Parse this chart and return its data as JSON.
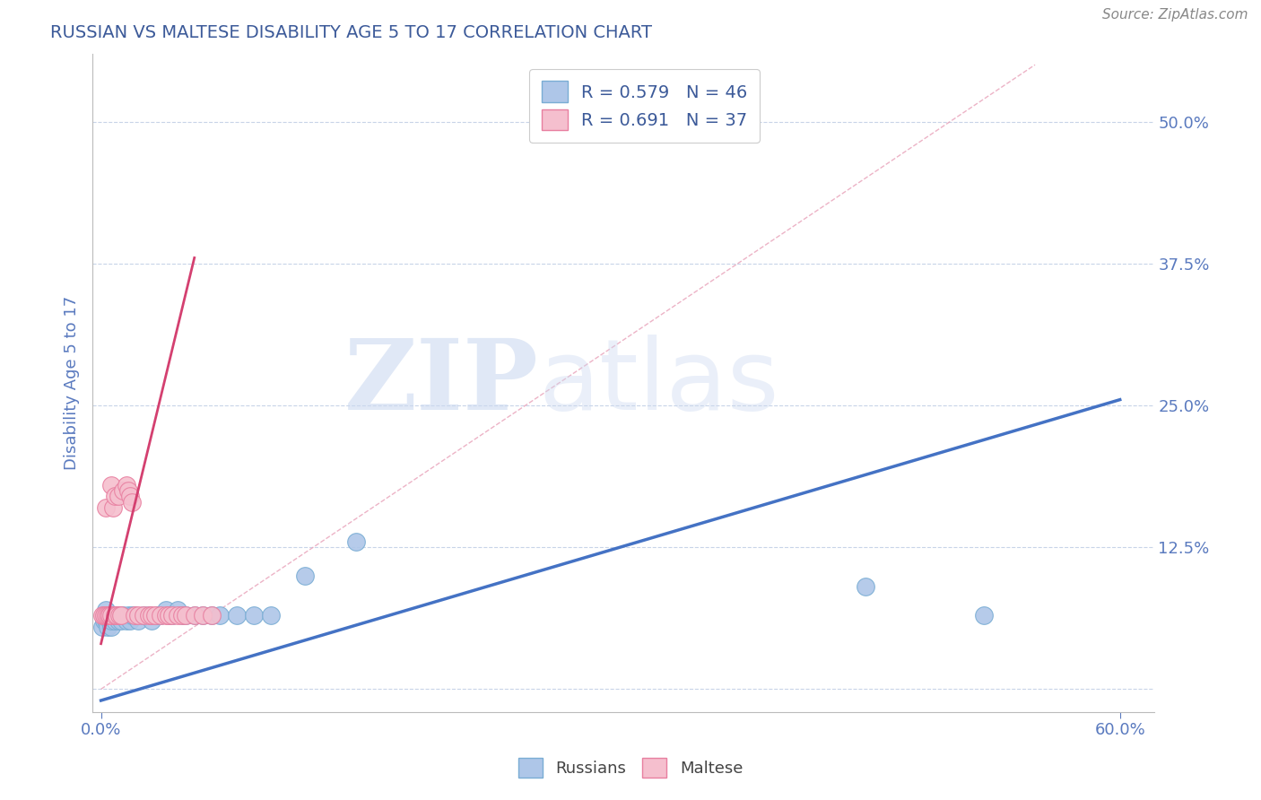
{
  "title": "RUSSIAN VS MALTESE DISABILITY AGE 5 TO 17 CORRELATION CHART",
  "source": "Source: ZipAtlas.com",
  "ylabel": "Disability Age 5 to 17",
  "xlim": [
    -0.005,
    0.62
  ],
  "ylim": [
    -0.02,
    0.56
  ],
  "xticks": [
    0.0,
    0.6
  ],
  "xtick_labels": [
    "0.0%",
    "60.0%"
  ],
  "yticks": [
    0.0,
    0.125,
    0.25,
    0.375,
    0.5
  ],
  "ytick_labels": [
    "",
    "12.5%",
    "25.0%",
    "37.5%",
    "50.0%"
  ],
  "title_color": "#3c5a99",
  "watermark_color": "#ccd9f0",
  "russian_color": "#aec6e8",
  "maltese_color": "#f5bfce",
  "russian_edge": "#7aadd4",
  "maltese_edge": "#e87fa0",
  "russian_R": 0.579,
  "russian_N": 46,
  "maltese_R": 0.691,
  "maltese_N": 37,
  "russian_points_x": [
    0.001,
    0.002,
    0.002,
    0.003,
    0.003,
    0.004,
    0.004,
    0.005,
    0.005,
    0.006,
    0.006,
    0.007,
    0.008,
    0.009,
    0.01,
    0.01,
    0.012,
    0.013,
    0.015,
    0.016,
    0.017,
    0.018,
    0.02,
    0.022,
    0.025,
    0.028,
    0.03,
    0.033,
    0.035,
    0.038,
    0.04,
    0.042,
    0.045,
    0.048,
    0.05,
    0.055,
    0.06,
    0.065,
    0.07,
    0.08,
    0.09,
    0.1,
    0.12,
    0.15,
    0.45,
    0.52
  ],
  "russian_points_y": [
    0.055,
    0.06,
    0.065,
    0.06,
    0.07,
    0.065,
    0.055,
    0.06,
    0.065,
    0.055,
    0.06,
    0.065,
    0.06,
    0.065,
    0.06,
    0.065,
    0.06,
    0.065,
    0.06,
    0.065,
    0.06,
    0.065,
    0.065,
    0.06,
    0.065,
    0.065,
    0.06,
    0.065,
    0.065,
    0.07,
    0.065,
    0.065,
    0.07,
    0.065,
    0.065,
    0.065,
    0.065,
    0.065,
    0.065,
    0.065,
    0.065,
    0.065,
    0.1,
    0.13,
    0.09,
    0.065
  ],
  "maltese_points_x": [
    0.001,
    0.002,
    0.003,
    0.003,
    0.004,
    0.005,
    0.005,
    0.006,
    0.006,
    0.007,
    0.008,
    0.008,
    0.009,
    0.01,
    0.011,
    0.012,
    0.013,
    0.015,
    0.016,
    0.017,
    0.018,
    0.02,
    0.022,
    0.025,
    0.028,
    0.03,
    0.032,
    0.035,
    0.038,
    0.04,
    0.042,
    0.045,
    0.048,
    0.05,
    0.055,
    0.06,
    0.065
  ],
  "maltese_points_y": [
    0.065,
    0.065,
    0.16,
    0.065,
    0.065,
    0.065,
    0.065,
    0.18,
    0.065,
    0.16,
    0.17,
    0.065,
    0.065,
    0.17,
    0.065,
    0.065,
    0.175,
    0.18,
    0.175,
    0.17,
    0.165,
    0.065,
    0.065,
    0.065,
    0.065,
    0.065,
    0.065,
    0.065,
    0.065,
    0.065,
    0.065,
    0.065,
    0.065,
    0.065,
    0.065,
    0.065,
    0.065
  ],
  "blue_line_x": [
    0.0,
    0.6
  ],
  "blue_line_y": [
    -0.01,
    0.255
  ],
  "pink_line_x": [
    0.0,
    0.055
  ],
  "pink_line_y": [
    0.04,
    0.38
  ],
  "ref_line_x": [
    0.0,
    0.55
  ],
  "ref_line_y": [
    0.0,
    0.55
  ],
  "background_color": "#ffffff",
  "grid_color": "#c8d4e8",
  "tick_color": "#5a7abf",
  "legend_text_color": "#3c5a99"
}
